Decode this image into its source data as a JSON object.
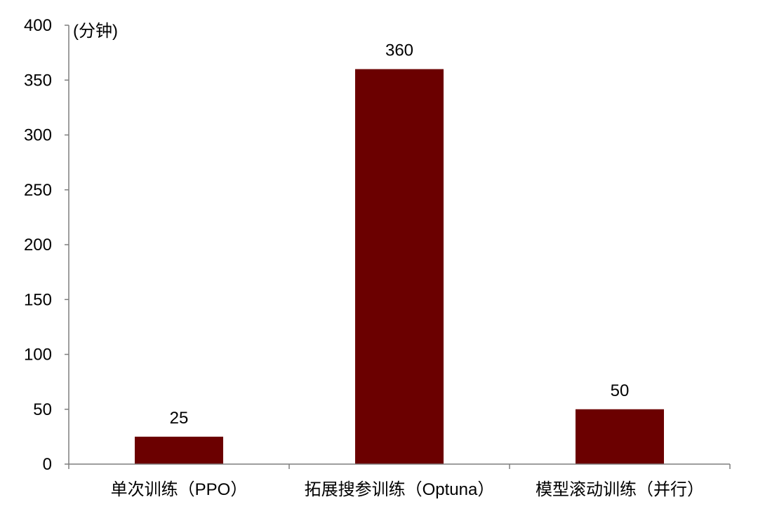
{
  "chart_data": {
    "type": "bar",
    "title": "",
    "xlabel": "",
    "ylabel": "(分钟)",
    "ylim": [
      0,
      400
    ],
    "yticks": [
      0,
      50,
      100,
      150,
      200,
      250,
      300,
      350,
      400
    ],
    "categories": [
      "单次训练（PPO）",
      "拓展搜参训练（Optuna）",
      "模型滚动训练（并行）"
    ],
    "values": [
      25,
      360,
      50
    ],
    "data_labels": [
      "25",
      "360",
      "50"
    ],
    "grid": false,
    "legend": "none",
    "bar_color": "#6b0000",
    "axis_color": "#7f7f7f"
  }
}
